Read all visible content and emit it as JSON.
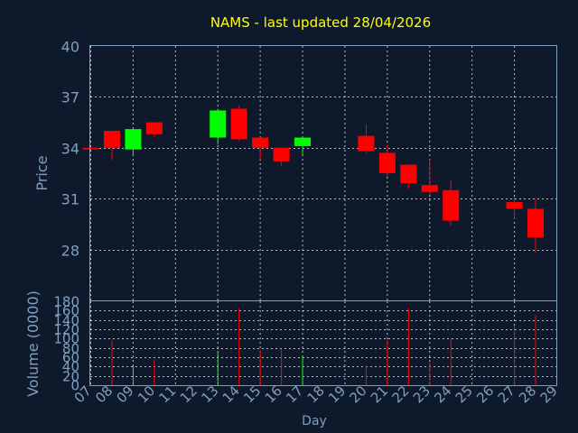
{
  "chart_data": {
    "type": "candlestick",
    "title": "NAMS - last updated 28/04/2026",
    "xlabel": "Day",
    "price_panel": {
      "ylabel": "Price",
      "ylim": [
        25,
        40
      ],
      "y_ticks": [
        28,
        31,
        34,
        37,
        40
      ],
      "grid": true
    },
    "volume_panel": {
      "ylabel": "Volume (0000)",
      "ylim": [
        0,
        180
      ],
      "y_ticks": [
        0,
        20,
        40,
        60,
        80,
        100,
        120,
        140,
        160,
        180
      ],
      "grid": true
    },
    "x_ticks": [
      "07",
      "08",
      "09",
      "10",
      "11",
      "12",
      "13",
      "14",
      "15",
      "16",
      "17",
      "18",
      "19",
      "20",
      "21",
      "22",
      "23",
      "24",
      "25",
      "26",
      "27",
      "28",
      "29"
    ],
    "candles": [
      {
        "day": "07",
        "open": 34.0,
        "high": 34.0,
        "low": 33.9,
        "close": 33.9,
        "volume": 0
      },
      {
        "day": "08",
        "open": 35.0,
        "high": 35.0,
        "low": 33.3,
        "close": 34.0,
        "volume": 97
      },
      {
        "day": "09",
        "open": 33.9,
        "high": 35.1,
        "low": 33.5,
        "close": 35.1,
        "volume": 42
      },
      {
        "day": "10",
        "open": 35.5,
        "high": 35.5,
        "low": 34.6,
        "close": 34.8,
        "volume": 54
      },
      {
        "day": "13",
        "open": 34.6,
        "high": 36.3,
        "low": 34.2,
        "close": 36.2,
        "volume": 72
      },
      {
        "day": "14",
        "open": 36.3,
        "high": 36.5,
        "low": 34.4,
        "close": 34.5,
        "volume": 165
      },
      {
        "day": "15",
        "open": 34.6,
        "high": 34.6,
        "low": 33.3,
        "close": 34.0,
        "volume": 75
      },
      {
        "day": "16",
        "open": 34.0,
        "high": 34.0,
        "low": 32.9,
        "close": 33.2,
        "volume": 78
      },
      {
        "day": "17",
        "open": 34.1,
        "high": 34.6,
        "low": 33.6,
        "close": 34.6,
        "volume": 62
      },
      {
        "day": "20",
        "open": 34.7,
        "high": 35.4,
        "low": 33.7,
        "close": 33.8,
        "volume": 42
      },
      {
        "day": "21",
        "open": 33.7,
        "high": 34.2,
        "low": 32.3,
        "close": 32.5,
        "volume": 97
      },
      {
        "day": "22",
        "open": 33.0,
        "high": 33.0,
        "low": 31.6,
        "close": 31.9,
        "volume": 165
      },
      {
        "day": "23",
        "open": 31.8,
        "high": 33.3,
        "low": 31.2,
        "close": 31.4,
        "volume": 50
      },
      {
        "day": "24",
        "open": 31.5,
        "high": 32.1,
        "low": 29.4,
        "close": 29.7,
        "volume": 100
      },
      {
        "day": "27",
        "open": 30.8,
        "high": 31.1,
        "low": 29.8,
        "close": 30.4,
        "volume": 128
      },
      {
        "day": "28",
        "open": 30.4,
        "high": 31.0,
        "low": 27.8,
        "close": 28.7,
        "volume": 150
      }
    ],
    "colors": {
      "background": "#0e1a2b",
      "up": "#00ff00",
      "down": "#ff0000",
      "title": "#ffff00",
      "axis_text": "#7f9fbf",
      "grid": "#ffffff"
    }
  }
}
